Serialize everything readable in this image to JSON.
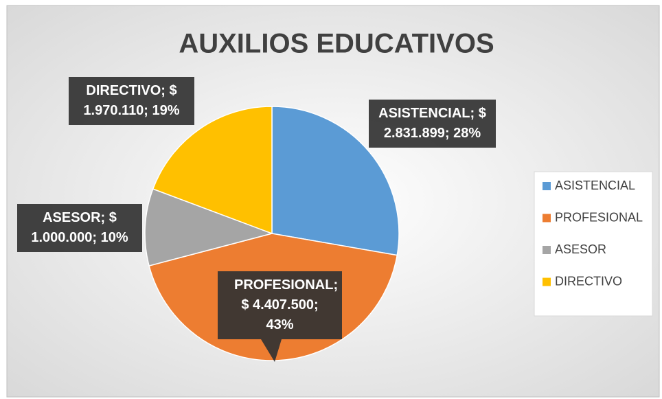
{
  "chart_data": {
    "type": "pie",
    "title": "AUXILIOS EDUCATIVOS",
    "categories": [
      "ASISTENCIAL",
      "PROFESIONAL",
      "ASESOR",
      "DIRECTIVO"
    ],
    "values": [
      2831899,
      4407500,
      1000000,
      1970110
    ],
    "value_labels": [
      "ASISTENCIAL; $ 2.831.899; 28%",
      "PROFESIONAL; $ 4.407.500; 43%",
      "ASESOR; $ 1.000.000; 10%",
      "DIRECTIVO; $ 1.970.110; 19%"
    ],
    "colors": [
      "#5b9bd5",
      "#ed7d31",
      "#a5a5a5",
      "#ffc000"
    ],
    "legend": "right"
  }
}
